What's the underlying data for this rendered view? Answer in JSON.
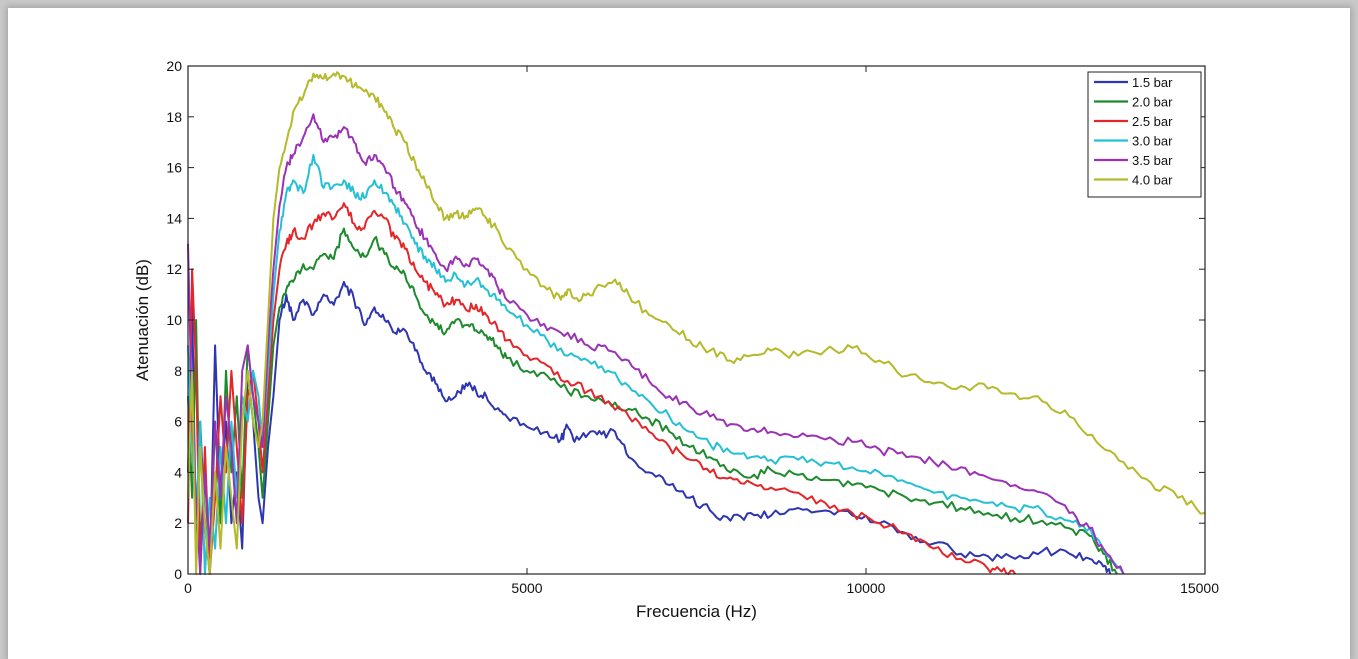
{
  "chart_data": {
    "type": "line",
    "xlabel": "Frecuencia (Hz)",
    "ylabel": "Atenuación (dB)",
    "xlim": [
      0,
      15000
    ],
    "ylim": [
      0,
      20
    ],
    "xticks": [
      0,
      5000,
      10000,
      15000
    ],
    "yticks": [
      0,
      2,
      4,
      6,
      8,
      10,
      12,
      14,
      16,
      18,
      20
    ],
    "grid": false,
    "legend_position": "top-right",
    "series": [
      {
        "name": "1.5 bar",
        "color": "#2e35b0",
        "x": [
          0,
          60,
          120,
          180,
          250,
          320,
          400,
          480,
          560,
          640,
          720,
          800,
          880,
          960,
          1040,
          1100,
          1180,
          1260,
          1350,
          1450,
          1550,
          1700,
          1850,
          2000,
          2150,
          2300,
          2450,
          2600,
          2750,
          2900,
          3050,
          3200,
          3350,
          3500,
          3650,
          3800,
          3950,
          4100,
          4250,
          4400,
          4550,
          4700,
          5000,
          5300,
          5500,
          5600,
          5700,
          5900,
          6100,
          6300,
          6500,
          6800,
          7100,
          7400,
          7700,
          8000,
          8300,
          8600,
          9000,
          9400,
          9800,
          10200,
          10600,
          11000,
          11400,
          11800,
          12200,
          12600,
          13000,
          13300,
          13500,
          13600
        ],
        "y": [
          4,
          10.8,
          1,
          6,
          2,
          0,
          9,
          3,
          6,
          2,
          4,
          1,
          8,
          6,
          3,
          2,
          5,
          7,
          10,
          11,
          10,
          10.8,
          10.2,
          11,
          10.6,
          11.5,
          10.8,
          9.8,
          10.5,
          10,
          9.5,
          9.6,
          8.8,
          8,
          7.5,
          6.8,
          7,
          7.5,
          7.2,
          7,
          6.5,
          6.2,
          5.8,
          5.6,
          5.3,
          5.8,
          5.2,
          5.5,
          5.5,
          5.6,
          4.6,
          4,
          3.5,
          3,
          2.5,
          2.1,
          2.4,
          2.3,
          2.6,
          2.5,
          2.3,
          2,
          1.6,
          1.2,
          0.8,
          0.7,
          0.6,
          0.9,
          0.8,
          0.6,
          0.3,
          0
        ]
      },
      {
        "name": "2.0 bar",
        "color": "#1e8a2e",
        "x": [
          0,
          60,
          120,
          180,
          250,
          320,
          400,
          480,
          560,
          640,
          720,
          800,
          880,
          960,
          1040,
          1100,
          1180,
          1260,
          1350,
          1450,
          1550,
          1700,
          1850,
          2000,
          2150,
          2300,
          2450,
          2600,
          2750,
          2900,
          3050,
          3200,
          3350,
          3500,
          3650,
          3800,
          3950,
          4100,
          4250,
          4400,
          4550,
          4700,
          5000,
          5300,
          5600,
          5900,
          6200,
          6500,
          6800,
          7100,
          7400,
          7700,
          8000,
          8300,
          8600,
          9000,
          9400,
          9800,
          10200,
          10600,
          11000,
          11400,
          11800,
          12200,
          12600,
          13000,
          13300,
          13500,
          13700
        ],
        "y": [
          7,
          3,
          10,
          1,
          4,
          0,
          6,
          2,
          8,
          4,
          7,
          3,
          9,
          7,
          5,
          3,
          6,
          9,
          10.5,
          11.2,
          11.5,
          12.2,
          12,
          12.6,
          12.4,
          13.6,
          12.8,
          12.5,
          13.2,
          12.6,
          12,
          11.8,
          11,
          10.2,
          9.8,
          9.5,
          10,
          9.8,
          9.6,
          9.4,
          9,
          8.5,
          8,
          7.8,
          7.2,
          7,
          6.8,
          6.5,
          6.1,
          5.6,
          5,
          4.6,
          4,
          3.8,
          4.1,
          3.9,
          3.7,
          3.5,
          3.3,
          3,
          2.8,
          2.6,
          2.4,
          2.2,
          2.1,
          1.8,
          1.5,
          0.8,
          0
        ]
      },
      {
        "name": "2.5 bar",
        "color": "#e3262a",
        "x": [
          0,
          60,
          120,
          180,
          250,
          320,
          400,
          480,
          560,
          640,
          720,
          800,
          880,
          960,
          1040,
          1100,
          1180,
          1260,
          1350,
          1450,
          1550,
          1700,
          1850,
          2000,
          2150,
          2300,
          2450,
          2600,
          2750,
          2900,
          3050,
          3200,
          3350,
          3500,
          3650,
          3800,
          3950,
          4100,
          4250,
          4400,
          4550,
          4700,
          5000,
          5300,
          5600,
          5900,
          6200,
          6500,
          6800,
          7100,
          7400,
          7700,
          8000,
          8300,
          8600,
          9000,
          9400,
          9800,
          10200,
          10600,
          11000,
          11400,
          11800,
          12000,
          12200
        ],
        "y": [
          2,
          12,
          8,
          0,
          5,
          0,
          3,
          7,
          4,
          8,
          5,
          2,
          7,
          8,
          6,
          4,
          7,
          10,
          12,
          13,
          13.5,
          13.2,
          13.8,
          14.2,
          14,
          14.6,
          13.8,
          13.6,
          14.3,
          14,
          13.2,
          12.8,
          12,
          11.5,
          11,
          10.6,
          10.8,
          10.4,
          10.6,
          10.2,
          9.8,
          9.2,
          8.6,
          8.2,
          7.6,
          7.2,
          6.8,
          6.2,
          5.6,
          5,
          4.5,
          4,
          3.8,
          3.6,
          3.4,
          3.2,
          2.8,
          2.4,
          2,
          1.6,
          1,
          0.6,
          0.2,
          0.1,
          0
        ]
      },
      {
        "name": "3.0 bar",
        "color": "#25c0d3",
        "x": [
          0,
          60,
          120,
          180,
          250,
          320,
          400,
          480,
          560,
          640,
          720,
          800,
          880,
          960,
          1040,
          1100,
          1180,
          1260,
          1350,
          1450,
          1550,
          1700,
          1850,
          2000,
          2150,
          2300,
          2450,
          2600,
          2750,
          2900,
          3050,
          3200,
          3350,
          3500,
          3650,
          3800,
          3950,
          4100,
          4250,
          4400,
          4550,
          4700,
          5000,
          5300,
          5600,
          5900,
          6200,
          6500,
          6800,
          7100,
          7400,
          7700,
          8000,
          8300,
          8600,
          9000,
          9400,
          9800,
          10200,
          10600,
          11000,
          11400,
          11800,
          12200,
          12600,
          13000,
          13300,
          13500,
          13800
        ],
        "y": [
          9,
          5,
          2,
          6,
          0,
          3,
          1,
          5,
          2,
          6,
          3,
          7,
          6,
          8,
          7,
          5,
          8,
          11,
          13.5,
          15,
          15.5,
          15,
          16.5,
          15.2,
          15.3,
          15.5,
          15,
          14.8,
          15.5,
          15,
          14.5,
          13.8,
          13,
          12.5,
          12,
          11.5,
          11.8,
          11.4,
          11.6,
          11.2,
          10.8,
          10.4,
          9.8,
          9.2,
          8.6,
          8.4,
          8,
          7.4,
          6.8,
          6.2,
          5.6,
          5.1,
          4.8,
          4.6,
          4.5,
          4.5,
          4.4,
          4.2,
          4,
          3.6,
          3.2,
          3,
          2.8,
          2.6,
          2.5,
          2.1,
          1.8,
          1,
          0
        ]
      },
      {
        "name": "3.5 bar",
        "color": "#9b32b5",
        "x": [
          0,
          60,
          120,
          180,
          250,
          320,
          400,
          480,
          560,
          640,
          720,
          800,
          880,
          960,
          1040,
          1100,
          1180,
          1260,
          1350,
          1450,
          1550,
          1700,
          1850,
          2000,
          2150,
          2300,
          2450,
          2600,
          2750,
          2900,
          3050,
          3200,
          3350,
          3500,
          3650,
          3800,
          3950,
          4100,
          4250,
          4400,
          4550,
          4700,
          5000,
          5300,
          5600,
          5900,
          6200,
          6500,
          6800,
          7100,
          7400,
          7700,
          8000,
          8300,
          8600,
          9000,
          9400,
          9800,
          10200,
          10600,
          11000,
          11400,
          11800,
          12200,
          12600,
          13000,
          13300,
          13500,
          13800
        ],
        "y": [
          13,
          6,
          3,
          0,
          4,
          1,
          6,
          3,
          7,
          5,
          2,
          8,
          9,
          7,
          6,
          5,
          9,
          12,
          14.5,
          16,
          16.5,
          17.2,
          18.1,
          17,
          17.2,
          17.6,
          17,
          16.2,
          16.5,
          16,
          15.2,
          14.6,
          13.8,
          13.2,
          12.6,
          12,
          12.5,
          12.2,
          12.4,
          12,
          11.4,
          10.8,
          10.2,
          9.6,
          9.5,
          9,
          8.8,
          8.4,
          7.6,
          7,
          6.6,
          6.2,
          5.9,
          5.7,
          5.6,
          5.4,
          5.3,
          5.2,
          4.9,
          4.6,
          4.4,
          4.2,
          3.8,
          3.5,
          3.2,
          2.4,
          1.8,
          1,
          0
        ]
      },
      {
        "name": "4.0 bar",
        "color": "#b5b92a",
        "x": [
          0,
          60,
          120,
          180,
          250,
          320,
          400,
          480,
          560,
          640,
          720,
          800,
          880,
          960,
          1040,
          1100,
          1180,
          1260,
          1350,
          1450,
          1550,
          1700,
          1850,
          2000,
          2150,
          2300,
          2450,
          2600,
          2750,
          2900,
          3050,
          3200,
          3350,
          3500,
          3650,
          3800,
          3950,
          4100,
          4250,
          4400,
          4550,
          4700,
          5000,
          5300,
          5500,
          5600,
          5800,
          6000,
          6300,
          6500,
          6800,
          7100,
          7400,
          7700,
          8000,
          8300,
          8600,
          9000,
          9400,
          9800,
          10200,
          10600,
          11000,
          11400,
          11800,
          12200,
          12600,
          13000,
          13400,
          13800,
          14200,
          14600,
          15000
        ],
        "y": [
          3,
          8,
          0,
          5,
          2,
          0,
          4,
          1,
          5,
          3,
          1,
          6,
          8,
          6,
          5,
          6,
          10,
          14,
          16,
          17,
          18.2,
          18.8,
          19.7,
          19.5,
          19.7,
          19.6,
          19.2,
          19,
          18.8,
          18.2,
          17.5,
          17,
          16.2,
          15.4,
          14.6,
          14,
          14.2,
          14.1,
          14.4,
          14,
          13.6,
          12.8,
          12,
          11.2,
          10.8,
          11.2,
          10.8,
          11.2,
          11.6,
          11,
          10.2,
          9.8,
          9.2,
          8.8,
          8.4,
          8.6,
          8.8,
          8.6,
          8.8,
          8.9,
          8.4,
          7.8,
          7.5,
          7.4,
          7.3,
          7.1,
          6.8,
          6.2,
          5.2,
          4.4,
          3.6,
          3,
          2.4
        ]
      }
    ]
  }
}
